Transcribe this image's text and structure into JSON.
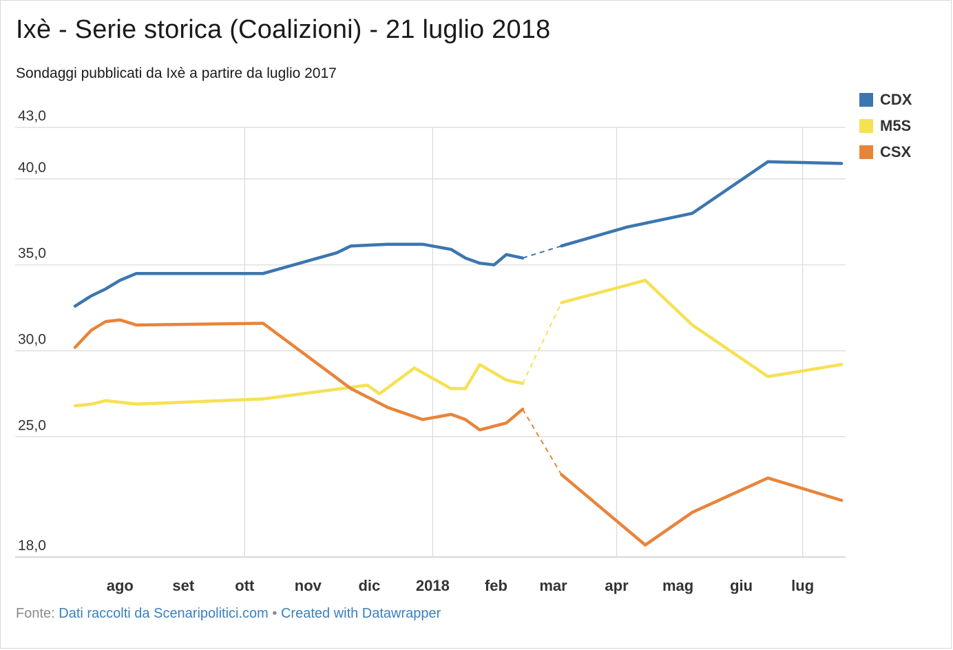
{
  "title": "Ixè - Serie storica (Coalizioni) - 21 luglio 2018",
  "subtitle": "Sondaggi pubblicati da Ixè a partire da luglio 2017",
  "footer": {
    "prefix": "Fonte:",
    "source": "Dati raccolti da Scenaripolitici.com",
    "separator": "•",
    "credit": "Created with Datawrapper"
  },
  "chart_data": {
    "type": "line",
    "ylim": [
      18,
      43
    ],
    "yticks": [
      43,
      40,
      35,
      30,
      25,
      18
    ],
    "ytick_labels": [
      "43,0",
      "40,0",
      "35,0",
      "30,0",
      "25,0",
      "18,0"
    ],
    "xlim": [
      "2017-07-09",
      "2018-07-22"
    ],
    "x_ticks": [
      {
        "label": "ago",
        "date": "2017-08-01",
        "gridline": false
      },
      {
        "label": "set",
        "date": "2017-09-01",
        "gridline": false
      },
      {
        "label": "ott",
        "date": "2017-10-01",
        "gridline": true
      },
      {
        "label": "nov",
        "date": "2017-11-01",
        "gridline": false
      },
      {
        "label": "dic",
        "date": "2017-12-01",
        "gridline": false
      },
      {
        "label": "2018",
        "date": "2018-01-01",
        "gridline": true
      },
      {
        "label": "feb",
        "date": "2018-02-01",
        "gridline": false
      },
      {
        "label": "mar",
        "date": "2018-03-01",
        "gridline": false
      },
      {
        "label": "apr",
        "date": "2018-04-01",
        "gridline": true
      },
      {
        "label": "mag",
        "date": "2018-05-01",
        "gridline": false
      },
      {
        "label": "giu",
        "date": "2018-06-01",
        "gridline": false
      },
      {
        "label": "lug",
        "date": "2018-07-01",
        "gridline": true
      }
    ],
    "gap": [
      "2018-02-22",
      "2018-03-09"
    ],
    "legend_position": "top-right",
    "series": [
      {
        "name": "CDX",
        "color": "#3c76b0",
        "points": [
          [
            "2017-07-10",
            32.6
          ],
          [
            "2017-07-18",
            33.2
          ],
          [
            "2017-07-25",
            33.6
          ],
          [
            "2017-08-01",
            34.1
          ],
          [
            "2017-08-09",
            34.5
          ],
          [
            "2017-10-10",
            34.5
          ],
          [
            "2017-11-15",
            35.7
          ],
          [
            "2017-11-22",
            36.1
          ],
          [
            "2017-12-10",
            36.2
          ],
          [
            "2017-12-27",
            36.2
          ],
          [
            "2018-01-10",
            35.9
          ],
          [
            "2018-01-17",
            35.4
          ],
          [
            "2018-01-24",
            35.1
          ],
          [
            "2018-01-31",
            35.0
          ],
          [
            "2018-02-06",
            35.6
          ],
          [
            "2018-02-14",
            35.4
          ],
          [
            "2018-03-05",
            36.1
          ],
          [
            "2018-04-06",
            37.2
          ],
          [
            "2018-05-08",
            38.0
          ],
          [
            "2018-06-14",
            41.0
          ],
          [
            "2018-07-20",
            40.9
          ]
        ]
      },
      {
        "name": "M5S",
        "color": "#f5e154",
        "points": [
          [
            "2017-07-10",
            26.8
          ],
          [
            "2017-07-18",
            26.9
          ],
          [
            "2017-07-25",
            27.1
          ],
          [
            "2017-08-09",
            26.9
          ],
          [
            "2017-10-10",
            27.2
          ],
          [
            "2017-11-30",
            28.0
          ],
          [
            "2017-12-06",
            27.5
          ],
          [
            "2017-12-23",
            29.0
          ],
          [
            "2018-01-10",
            27.8
          ],
          [
            "2018-01-17",
            27.8
          ],
          [
            "2018-01-24",
            29.2
          ],
          [
            "2018-02-06",
            28.3
          ],
          [
            "2018-02-14",
            28.1
          ],
          [
            "2018-03-05",
            32.8
          ],
          [
            "2018-04-15",
            34.1
          ],
          [
            "2018-05-08",
            31.5
          ],
          [
            "2018-06-14",
            28.5
          ],
          [
            "2018-07-20",
            29.2
          ]
        ]
      },
      {
        "name": "CSX",
        "color": "#e8843a",
        "points": [
          [
            "2017-07-10",
            30.2
          ],
          [
            "2017-07-18",
            31.2
          ],
          [
            "2017-07-25",
            31.7
          ],
          [
            "2017-08-01",
            31.8
          ],
          [
            "2017-08-09",
            31.5
          ],
          [
            "2017-10-10",
            31.6
          ],
          [
            "2017-11-22",
            27.8
          ],
          [
            "2017-12-10",
            26.7
          ],
          [
            "2017-12-27",
            26.0
          ],
          [
            "2018-01-10",
            26.3
          ],
          [
            "2018-01-17",
            26.0
          ],
          [
            "2018-01-24",
            25.4
          ],
          [
            "2018-02-06",
            25.8
          ],
          [
            "2018-02-14",
            26.6
          ],
          [
            "2018-03-05",
            22.8
          ],
          [
            "2018-04-15",
            18.7
          ],
          [
            "2018-05-08",
            20.6
          ],
          [
            "2018-06-14",
            22.6
          ],
          [
            "2018-07-20",
            21.3
          ]
        ]
      }
    ]
  }
}
